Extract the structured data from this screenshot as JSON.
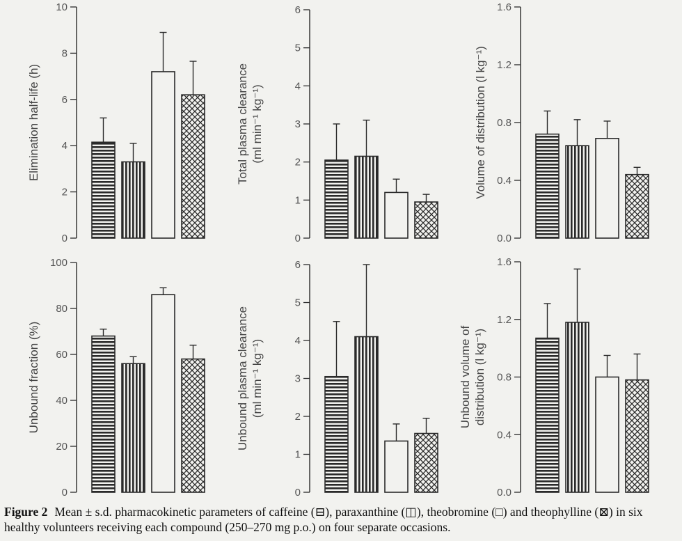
{
  "caption": {
    "label": "Figure 2",
    "text": "Mean ± s.d. pharmacokinetic parameters of caffeine (⊟), paraxanthine (◫), theobromine (□) and theophylline (⊠) in six healthy volunteers receiving each compound (250–270 mg p.o.) on four separate occasions."
  },
  "colors": {
    "ink": "#2a2a2a",
    "background": "#f2f2ef"
  },
  "chart_data": [
    {
      "type": "bar",
      "categories": [
        "caffeine",
        "paraxanthine",
        "theobromine",
        "theophylline"
      ],
      "patterns": [
        "horizontal-lines",
        "vertical-lines",
        "open",
        "cross-hatch"
      ],
      "ylabel": [
        "Elimination half-life (h)"
      ],
      "ylim": [
        0,
        10
      ],
      "yticks": [
        "0",
        "2",
        "4",
        "6",
        "8",
        "10"
      ],
      "values": [
        4.15,
        3.3,
        7.2,
        6.2
      ],
      "sd": [
        1.05,
        0.8,
        1.7,
        1.45
      ]
    },
    {
      "type": "bar",
      "categories": [
        "caffeine",
        "paraxanthine",
        "theobromine",
        "theophylline"
      ],
      "patterns": [
        "horizontal-lines",
        "vertical-lines",
        "open",
        "cross-hatch"
      ],
      "ylabel": [
        "Total plasma clearance",
        "(ml min⁻¹ kg⁻¹)"
      ],
      "ylim": [
        0,
        6
      ],
      "yticks": [
        "0",
        "1",
        "2",
        "3",
        "4",
        "5",
        "6"
      ],
      "values": [
        2.05,
        2.15,
        1.2,
        0.95
      ],
      "sd": [
        0.95,
        0.95,
        0.35,
        0.2
      ]
    },
    {
      "type": "bar",
      "categories": [
        "caffeine",
        "paraxanthine",
        "theobromine",
        "theophylline"
      ],
      "patterns": [
        "horizontal-lines",
        "vertical-lines",
        "open",
        "cross-hatch"
      ],
      "ylabel": [
        "Volume of distribution (l kg⁻¹)"
      ],
      "ylim": [
        0,
        1.6
      ],
      "yticks": [
        "0.0",
        "0.4",
        "0.8",
        "1.2",
        "1.6"
      ],
      "values": [
        0.72,
        0.64,
        0.69,
        0.44
      ],
      "sd": [
        0.16,
        0.18,
        0.12,
        0.05
      ]
    },
    {
      "type": "bar",
      "categories": [
        "caffeine",
        "paraxanthine",
        "theobromine",
        "theophylline"
      ],
      "patterns": [
        "horizontal-lines",
        "vertical-lines",
        "open",
        "cross-hatch"
      ],
      "ylabel": [
        "Unbound fraction (%)"
      ],
      "ylim": [
        0,
        100
      ],
      "yticks": [
        "0",
        "20",
        "40",
        "60",
        "80",
        "100"
      ],
      "values": [
        68,
        56,
        86,
        58
      ],
      "sd": [
        3,
        3,
        3,
        6
      ]
    },
    {
      "type": "bar",
      "categories": [
        "caffeine",
        "paraxanthine",
        "theobromine",
        "theophylline"
      ],
      "patterns": [
        "horizontal-lines",
        "vertical-lines",
        "open",
        "cross-hatch"
      ],
      "ylabel": [
        "Unbound plasma clearance",
        "(ml min⁻¹ kg⁻¹)"
      ],
      "ylim": [
        0,
        6
      ],
      "yticks": [
        "0",
        "1",
        "2",
        "3",
        "4",
        "5",
        "6"
      ],
      "values": [
        3.05,
        4.1,
        1.35,
        1.55
      ],
      "sd": [
        1.45,
        1.9,
        0.45,
        0.4
      ]
    },
    {
      "type": "bar",
      "categories": [
        "caffeine",
        "paraxanthine",
        "theobromine",
        "theophylline"
      ],
      "patterns": [
        "horizontal-lines",
        "vertical-lines",
        "open",
        "cross-hatch"
      ],
      "ylabel": [
        "Unbound volume of",
        "distribution (l kg⁻¹)"
      ],
      "ylim": [
        0,
        1.6
      ],
      "yticks": [
        "0.0",
        "0.4",
        "0.8",
        "1.2",
        "1.6"
      ],
      "values": [
        1.07,
        1.18,
        0.8,
        0.78
      ],
      "sd": [
        0.24,
        0.37,
        0.15,
        0.18
      ]
    }
  ]
}
